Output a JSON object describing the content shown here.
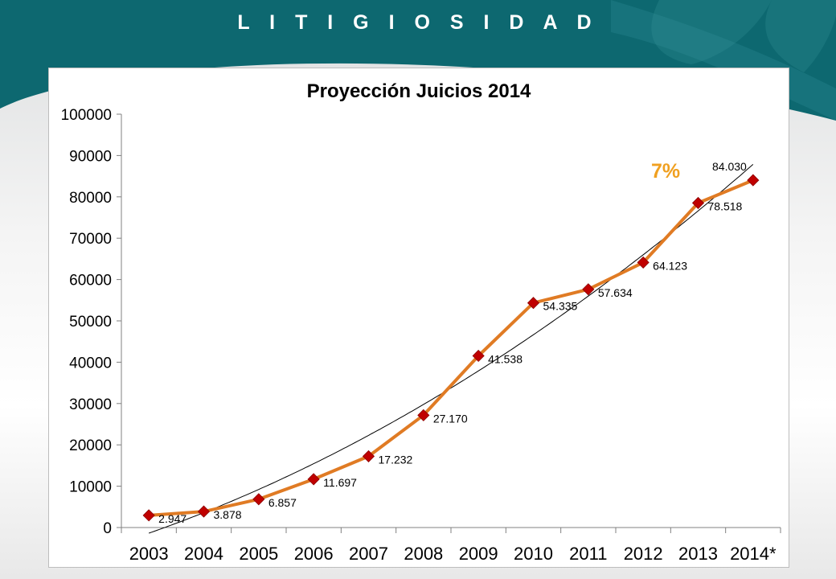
{
  "header": {
    "title": "L I T I G I O S I D A D",
    "band_color": "#0d6870"
  },
  "chart_data": {
    "type": "line",
    "title": "Proyección Juicios 2014",
    "categories": [
      "2003",
      "2004",
      "2005",
      "2006",
      "2007",
      "2008",
      "2009",
      "2010",
      "2011",
      "2012",
      "2013",
      "2014*"
    ],
    "series": [
      {
        "values": [
          2947,
          3878,
          6857,
          11697,
          17232,
          27170,
          41538,
          54335,
          57634,
          64123,
          78518,
          84030
        ],
        "labels": [
          "2.947",
          "3.878",
          "6.857",
          "11.697",
          "17.232",
          "27.170",
          "41.538",
          "54.335",
          "57.634",
          "64.123",
          "78.518",
          "84.030"
        ],
        "color": "#e07b24",
        "marker": "diamond",
        "marker_color": "#c00000"
      }
    ],
    "trendline": {
      "type": "polynomial",
      "color": "#000000"
    },
    "y_ticks": [
      "0",
      "10000",
      "20000",
      "30000",
      "40000",
      "50000",
      "60000",
      "70000",
      "80000",
      "90000",
      "100000"
    ],
    "ylim": [
      0,
      100000
    ],
    "annotation": {
      "text": "7%",
      "color": "#f0a020"
    },
    "grid": false
  }
}
